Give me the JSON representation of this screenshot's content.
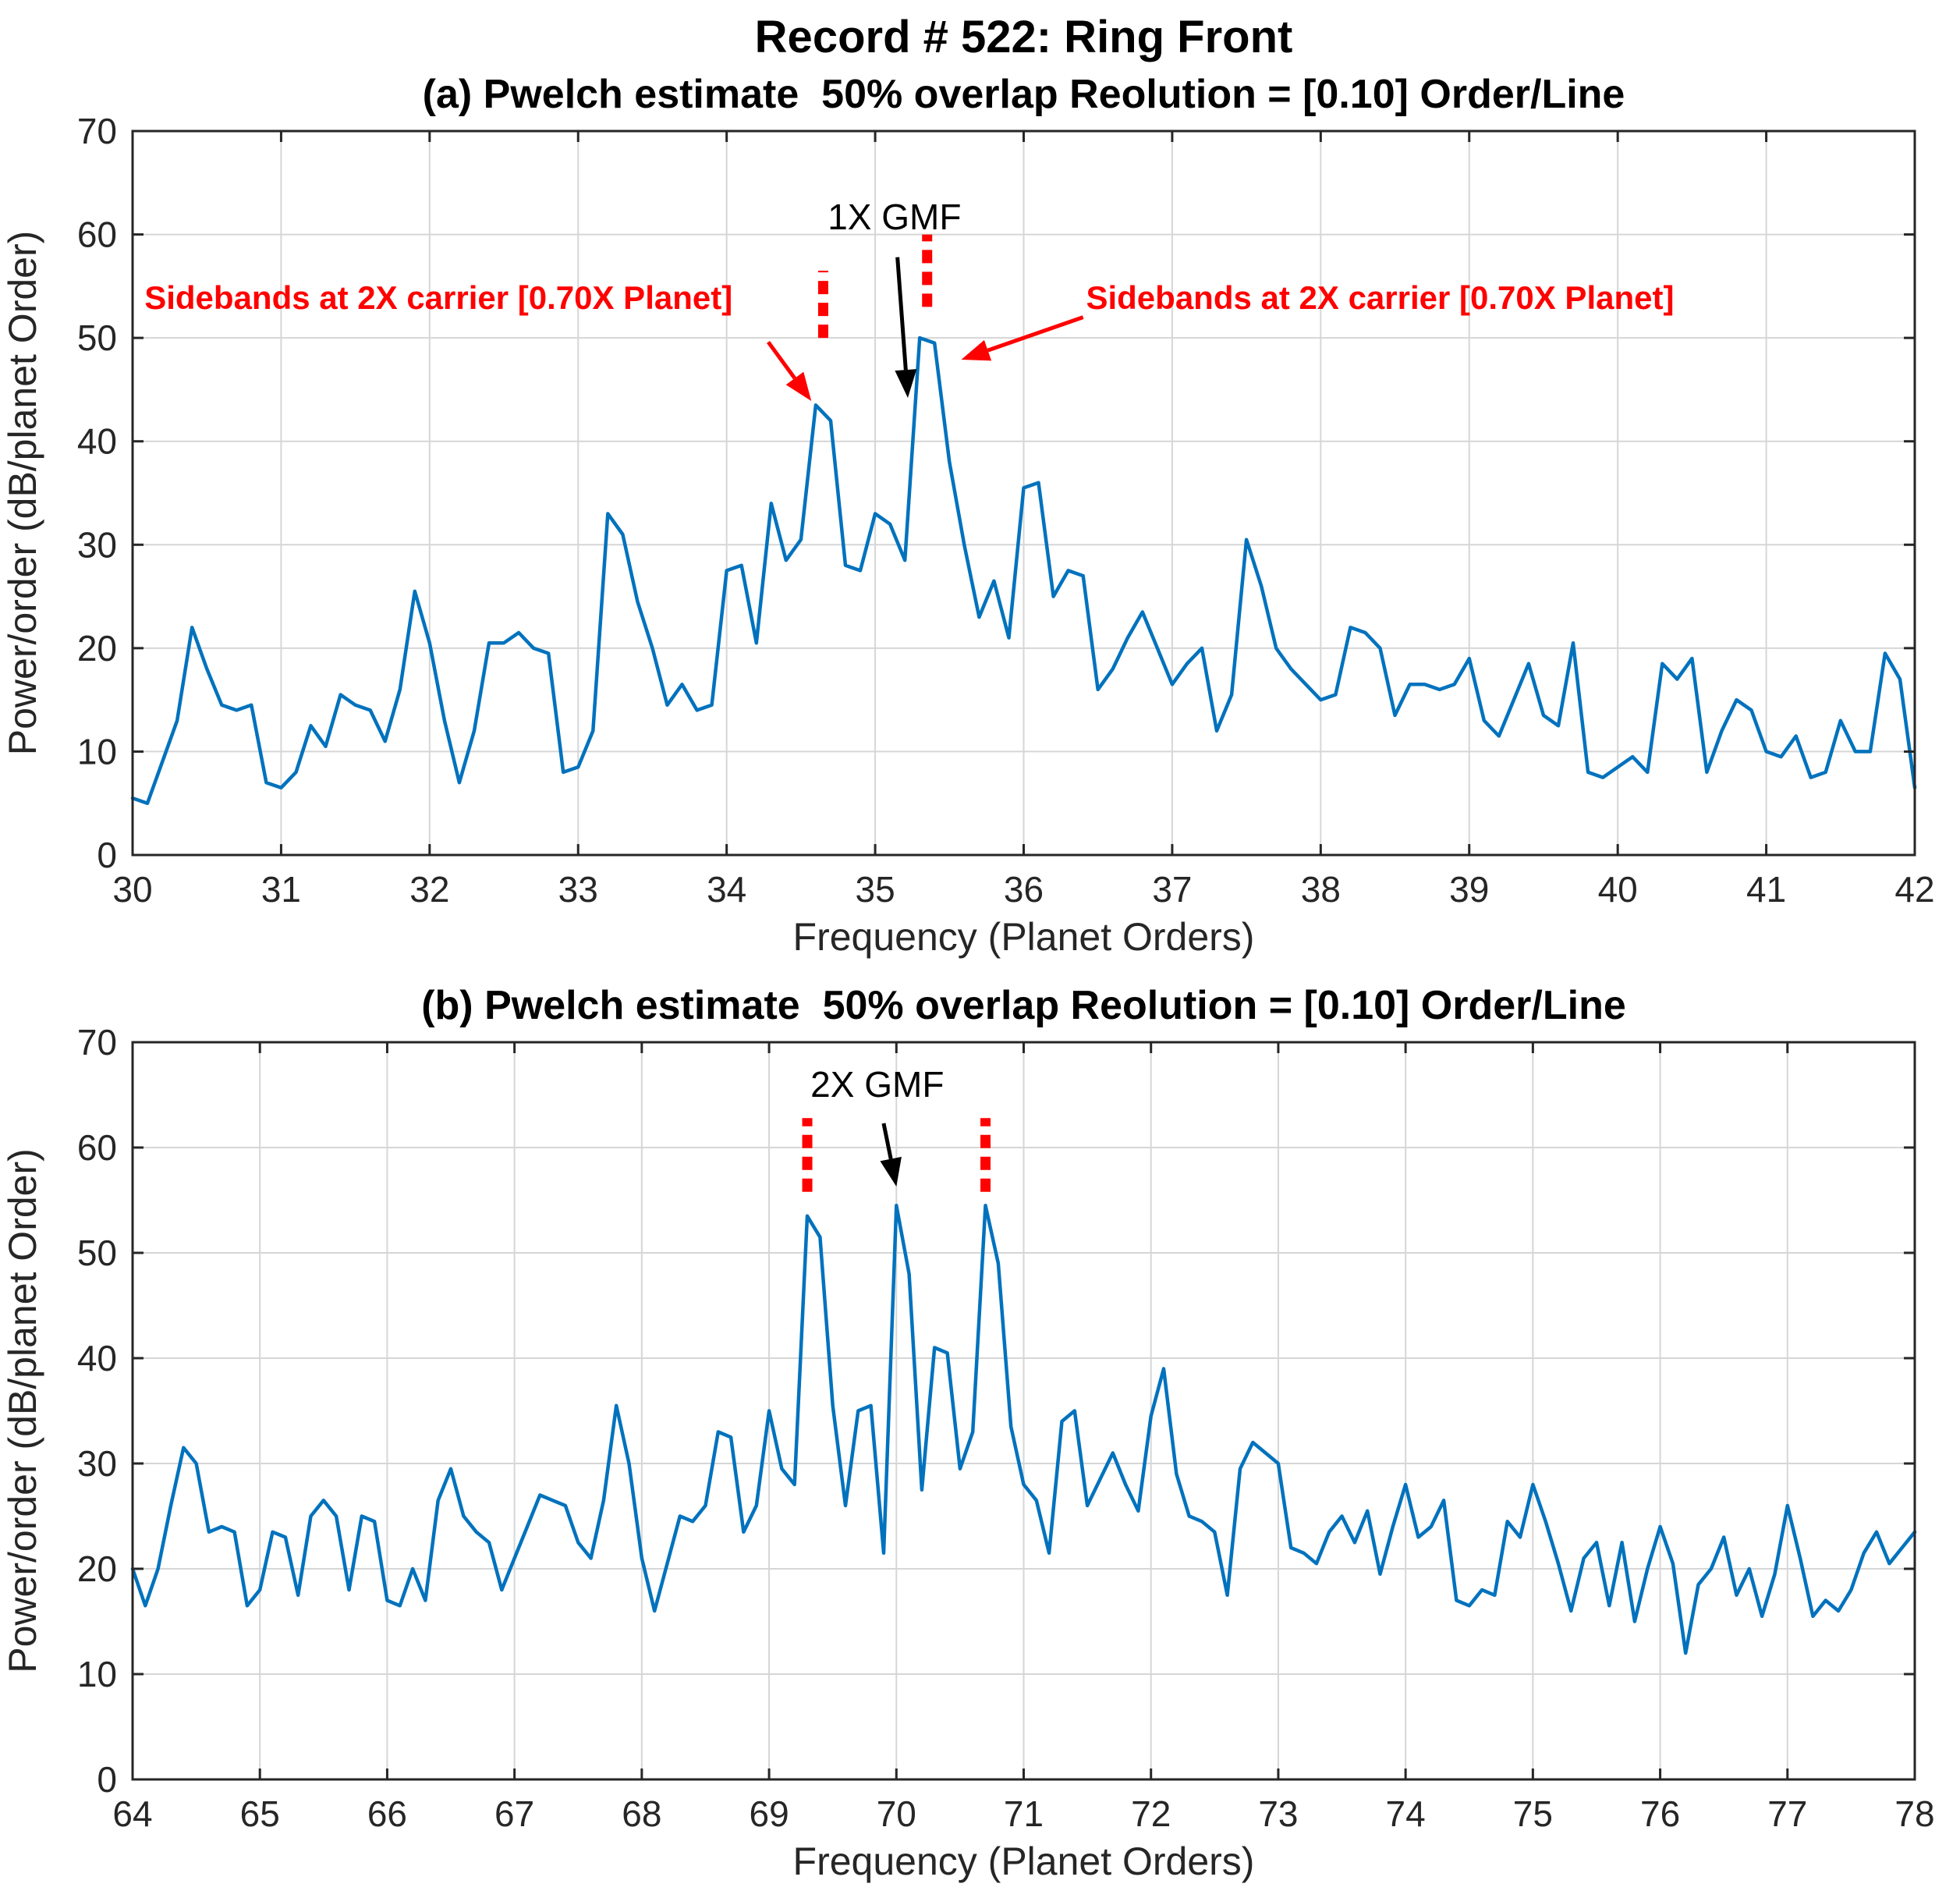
{
  "page": {
    "title": "Record # 522: Ring Front"
  },
  "chart_data": [
    {
      "type": "line",
      "subplot": "a",
      "title": "(a) Pwelch estimate  50% overlap Reolution = [0.10] Order/Line",
      "xlabel": "Frequency (Planet Orders)",
      "ylabel": "Power/order (dB/planet Order)",
      "xlim": [
        30,
        42
      ],
      "ylim": [
        0,
        70
      ],
      "xticks": [
        30,
        31,
        32,
        33,
        34,
        35,
        36,
        37,
        38,
        39,
        40,
        41,
        42
      ],
      "yticks": [
        0,
        10,
        20,
        30,
        40,
        50,
        60,
        70
      ],
      "grid": true,
      "legend": "none",
      "line_color": "#0072BD",
      "grid_color": "#d6d6d6",
      "series": {
        "x_start": 30.0,
        "x_step": 0.1,
        "y": [
          5.5,
          5,
          9,
          13,
          22,
          18,
          14.5,
          14,
          14.5,
          7,
          6.5,
          8,
          12.5,
          10.5,
          15.5,
          14.5,
          14,
          11,
          16,
          25.5,
          20.5,
          13,
          7,
          12,
          20.5,
          20.5,
          21.5,
          20,
          19.5,
          8,
          8.5,
          12,
          33,
          31,
          24.5,
          20,
          14.5,
          16.5,
          14,
          14.5,
          27.5,
          28,
          20.5,
          34,
          28.5,
          30.5,
          43.5,
          42,
          28,
          27.5,
          33,
          32,
          28.5,
          50,
          49.5,
          38,
          30,
          23,
          26.5,
          21,
          35.5,
          36,
          25,
          27.5,
          27,
          16,
          18,
          21,
          23.5,
          20,
          16.5,
          18.5,
          20,
          12,
          15.5,
          30.5,
          26,
          20,
          18,
          16.5,
          15,
          15.5,
          22,
          21.5,
          20,
          13.5,
          16.5,
          16.5,
          16,
          16.5,
          19,
          13,
          11.5,
          15,
          18.5,
          13.5,
          12.5,
          20.5,
          8,
          7.5,
          8.5,
          9.5,
          8,
          18.5,
          17,
          19,
          8,
          12,
          15,
          14,
          10,
          9.5,
          11.5,
          7.5,
          8,
          13,
          10,
          10,
          19.5,
          17,
          6.5
        ]
      },
      "annotations": {
        "gmf": {
          "label": "1X GMF",
          "text_x": 35.13,
          "text_y": 60.5,
          "from": [
            35.15,
            57.8
          ],
          "to": [
            35.22,
            44.2
          ]
        },
        "red_markers": [
          {
            "x": 34.65,
            "y_from": 50.0,
            "y_to": 56.5
          },
          {
            "x": 35.35,
            "y_from": 53.0,
            "y_to": 60.0
          }
        ],
        "sideband_labels": [
          {
            "text": "Sidebands at 2X carrier [0.70X Planet]",
            "text_x": 30.08,
            "text_y": 52.8,
            "anchor": "start",
            "from": [
              34.28,
              49.6
            ],
            "to": [
              34.57,
              43.9
            ]
          },
          {
            "text": "Sidebands at 2X carrier [0.70X Planet]",
            "text_x": 36.42,
            "text_y": 52.8,
            "anchor": "start",
            "from": [
              36.4,
              52.0
            ],
            "to": [
              35.58,
              47.9
            ]
          }
        ],
        "red_color": "#ff0000"
      }
    },
    {
      "type": "line",
      "subplot": "b",
      "title": "(b) Pwelch estimate  50% overlap Reolution = [0.10] Order/Line",
      "xlabel": "Frequency (Planet Orders)",
      "ylabel": "Power/order (dB/planet Order)",
      "xlim": [
        64,
        78
      ],
      "ylim": [
        0,
        70
      ],
      "xticks": [
        64,
        65,
        66,
        67,
        68,
        69,
        70,
        71,
        72,
        73,
        74,
        75,
        76,
        77,
        78
      ],
      "yticks": [
        0,
        10,
        20,
        30,
        40,
        50,
        60,
        70
      ],
      "grid": true,
      "legend": "none",
      "line_color": "#0072BD",
      "grid_color": "#d6d6d6",
      "series": {
        "x_start": 64.0,
        "x_step": 0.1,
        "y": [
          20,
          16.5,
          20,
          26,
          31.5,
          30,
          23.5,
          24,
          23.5,
          16.5,
          18,
          23.5,
          23,
          17.5,
          25,
          26.5,
          25,
          18,
          25,
          24.5,
          17,
          16.5,
          20,
          17,
          26.5,
          29.5,
          25,
          23.5,
          22.5,
          18,
          21,
          24,
          27,
          26.5,
          26,
          22.5,
          21,
          26.5,
          35.5,
          30,
          21,
          16,
          20.5,
          25,
          24.5,
          26,
          33,
          32.5,
          23.5,
          26,
          35,
          29.5,
          28,
          53.5,
          51.5,
          35.5,
          26,
          35,
          35.5,
          21.5,
          54.5,
          48,
          27.5,
          41,
          40.5,
          29.5,
          33,
          54.5,
          49,
          33.5,
          28,
          26.5,
          21.5,
          34,
          35,
          26,
          28.5,
          31,
          28,
          25.5,
          34.5,
          39,
          29,
          25,
          24.5,
          23.5,
          17.5,
          29.5,
          32,
          31,
          30,
          22,
          21.5,
          20.5,
          23.5,
          25,
          22.5,
          25.5,
          19.5,
          24,
          28,
          23,
          24,
          26.5,
          17,
          16.5,
          18,
          17.5,
          24.5,
          23,
          28,
          24.5,
          20.5,
          16,
          21,
          22.5,
          16.5,
          22.5,
          15,
          20,
          24,
          20.5,
          12,
          18.5,
          20,
          23,
          17.5,
          20,
          15.5,
          19.5,
          26,
          21,
          15.5,
          17,
          16,
          18,
          21.5,
          23.5,
          20.5,
          22,
          23.5
        ]
      },
      "annotations": {
        "gmf": {
          "label": "2X GMF",
          "text_x": 69.85,
          "text_y": 64.8,
          "from": [
            69.9,
            62.3
          ],
          "to": [
            70.0,
            56.3
          ]
        },
        "red_markers": [
          {
            "x": 69.3,
            "y_from": 55.8,
            "y_to": 62.8
          },
          {
            "x": 70.7,
            "y_from": 55.8,
            "y_to": 62.8
          }
        ],
        "sideband_labels": [],
        "red_color": "#ff0000"
      }
    }
  ]
}
